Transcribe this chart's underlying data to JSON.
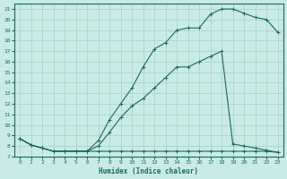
{
  "xlabel": "Humidex (Indice chaleur)",
  "bg_color": "#c8ebe5",
  "line_color": "#1a6b60",
  "grid_color": "#a8d5cc",
  "xlim": [
    -0.5,
    23.5
  ],
  "ylim": [
    7,
    21.5
  ],
  "xticks": [
    0,
    1,
    2,
    3,
    4,
    5,
    6,
    7,
    8,
    9,
    10,
    11,
    12,
    13,
    14,
    15,
    16,
    17,
    18,
    19,
    20,
    21,
    22,
    23
  ],
  "yticks": [
    7,
    8,
    9,
    10,
    11,
    12,
    13,
    14,
    15,
    16,
    17,
    18,
    19,
    20,
    21
  ],
  "series1_x": [
    0,
    1,
    2,
    3,
    4,
    5,
    6,
    7,
    8,
    9,
    10,
    11,
    12,
    13,
    14,
    15,
    16,
    17,
    18,
    19,
    20,
    21,
    22,
    23
  ],
  "series1_y": [
    8.7,
    8.1,
    7.8,
    7.5,
    7.5,
    7.5,
    7.5,
    7.5,
    7.5,
    7.5,
    7.5,
    7.5,
    7.5,
    7.5,
    7.5,
    7.5,
    7.5,
    7.5,
    7.5,
    7.5,
    7.5,
    7.5,
    7.5,
    7.4
  ],
  "series2_x": [
    0,
    1,
    2,
    3,
    4,
    5,
    6,
    7,
    8,
    9,
    10,
    11,
    12,
    13,
    14,
    15,
    16,
    17,
    18,
    19,
    20,
    21,
    22,
    23
  ],
  "series2_y": [
    8.7,
    8.1,
    7.8,
    7.5,
    7.5,
    7.5,
    7.5,
    8.5,
    10.5,
    12.0,
    13.5,
    15.5,
    17.2,
    17.8,
    19.0,
    19.2,
    19.2,
    20.5,
    21.0,
    21.0,
    20.6,
    20.2,
    20.0,
    18.8
  ],
  "series3_x": [
    0,
    1,
    2,
    3,
    4,
    5,
    6,
    7,
    8,
    9,
    10,
    11,
    12,
    13,
    14,
    15,
    16,
    17,
    18,
    19,
    20,
    21,
    22,
    23
  ],
  "series3_y": [
    8.7,
    8.1,
    7.8,
    7.5,
    7.5,
    7.5,
    7.5,
    8.0,
    9.3,
    10.7,
    11.8,
    12.5,
    13.5,
    14.5,
    15.5,
    15.5,
    16.0,
    16.5,
    17.0,
    8.2,
    8.0,
    7.8,
    7.6,
    7.4
  ]
}
